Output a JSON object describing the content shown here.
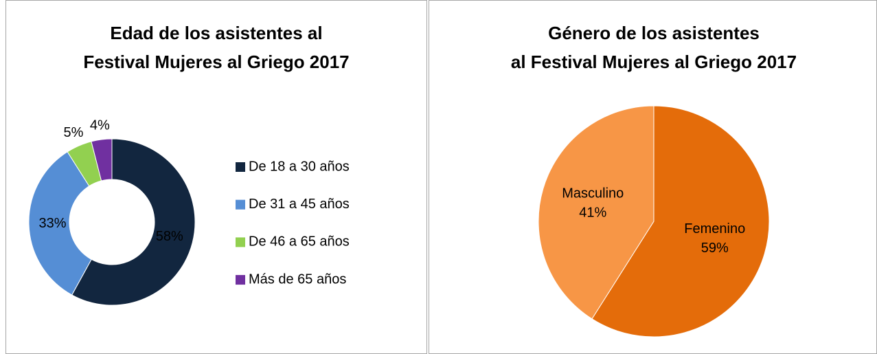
{
  "chart_data": [
    {
      "type": "donut",
      "title": [
        "Edad de los asistentes al",
        "Festival Mujeres al Griego 2017"
      ],
      "categories": [
        "De 18 a 30 años",
        "De 31 a 45 años",
        "De 46 a 65 años",
        "Más de 65 años"
      ],
      "values": [
        58,
        33,
        5,
        4
      ],
      "value_labels": [
        "58%",
        "33%",
        "5%",
        "4%"
      ],
      "colors": [
        "#12263f",
        "#558ed5",
        "#92d050",
        "#7030a0"
      ],
      "legend": "right"
    },
    {
      "type": "pie",
      "title": [
        "Género de los asistentes",
        "al Festival Mujeres al Griego 2017"
      ],
      "categories": [
        "Femenino",
        "Masculino"
      ],
      "values": [
        59,
        41
      ],
      "value_labels": [
        "59%",
        "41%"
      ],
      "colors": [
        "#e46c0a",
        "#f79646"
      ]
    }
  ]
}
